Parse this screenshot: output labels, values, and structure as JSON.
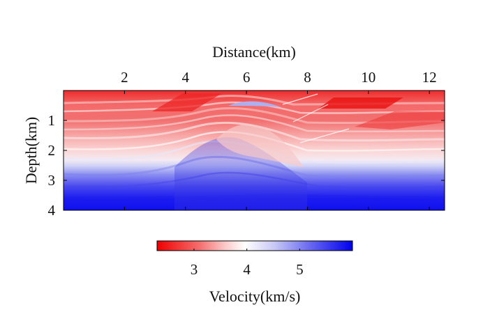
{
  "chart_data": {
    "type": "heatmap",
    "title": "",
    "xlabel": "Distance(km)",
    "ylabel": "Depth(km)",
    "xlim": [
      0,
      12.5
    ],
    "ylim": [
      0,
      4
    ],
    "x_axis_position": "top",
    "y_axis_direction": "down",
    "xticks": [
      2,
      4,
      6,
      8,
      10,
      12
    ],
    "yticks": [
      1,
      2,
      3,
      4
    ],
    "grid": false,
    "colorbar": {
      "label": "Velocity(km/s)",
      "range": [
        2.3,
        6.0
      ],
      "ticks": [
        3,
        4,
        5
      ],
      "colormap": [
        "#ee0000",
        "#ffffff",
        "#0000ee"
      ],
      "placement": "bottom"
    },
    "velocity_profile_by_depth": [
      {
        "depth": 0.0,
        "velocity": 2.5
      },
      {
        "depth": 0.5,
        "velocity": 2.9
      },
      {
        "depth": 1.0,
        "velocity": 3.2
      },
      {
        "depth": 1.5,
        "velocity": 3.5
      },
      {
        "depth": 2.0,
        "velocity": 3.9
      },
      {
        "depth": 2.3,
        "velocity": 4.3
      },
      {
        "depth": 2.6,
        "velocity": 4.9
      },
      {
        "depth": 3.0,
        "velocity": 5.3
      },
      {
        "depth": 3.5,
        "velocity": 5.7
      },
      {
        "depth": 4.0,
        "velocity": 5.9
      }
    ]
  }
}
